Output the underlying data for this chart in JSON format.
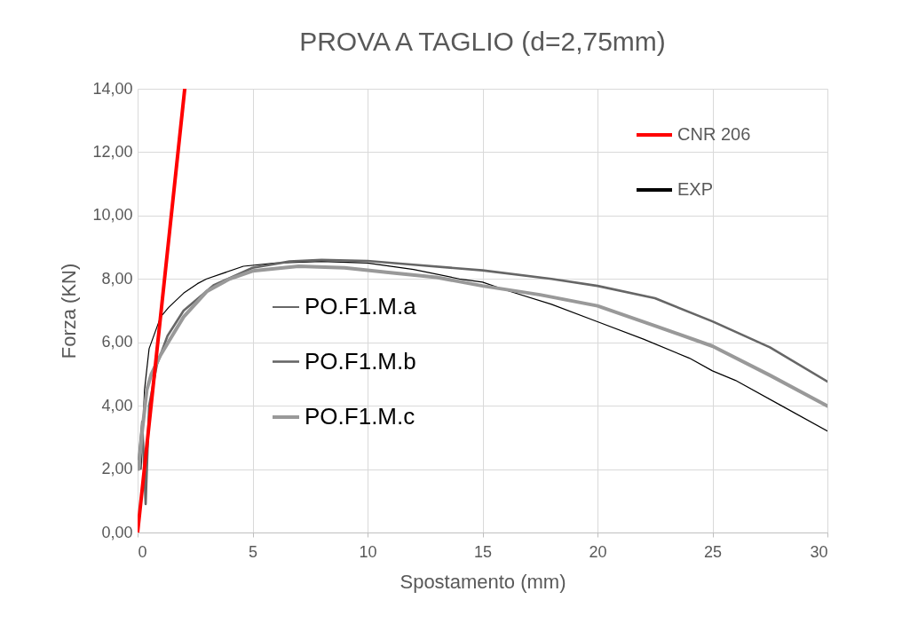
{
  "chart_data": {
    "type": "line",
    "title": "PROVA A TAGLIO (d=2,75mm)",
    "xlabel": "Spostamento (mm)",
    "ylabel": "Forza (KN)",
    "xlim": [
      0,
      30
    ],
    "xticks": [
      0,
      5,
      10,
      15,
      20,
      25,
      30
    ],
    "ylim": [
      0,
      14
    ],
    "yticks": [
      {
        "value": 0,
        "label": "0,00"
      },
      {
        "value": 2,
        "label": "2,00"
      },
      {
        "value": 4,
        "label": "4,00"
      },
      {
        "value": 6,
        "label": "6,00"
      },
      {
        "value": 8,
        "label": "8,00"
      },
      {
        "value": 10,
        "label": "10,00"
      },
      {
        "value": 12,
        "label": "12,00"
      },
      {
        "value": 14,
        "label": "14,00"
      }
    ],
    "grid": true,
    "legend": "top right",
    "line_style": "solid",
    "marker": "none",
    "series": [
      {
        "name": "CNR 206",
        "color": "#ff0000",
        "x": [
          0,
          2.05
        ],
        "values": [
          0,
          14
        ]
      },
      {
        "name": "EXP",
        "color": "#000000"
      },
      {
        "name": "PO.F1.M.a",
        "color": "#000000",
        "x": [
          0.15,
          0.3,
          0.5,
          1,
          1.35,
          2,
          2.6,
          3,
          4.6,
          6,
          8,
          10,
          12,
          14,
          15,
          16,
          18,
          20,
          22,
          24,
          25,
          26,
          28,
          30
        ],
        "values": [
          2.0,
          4.5,
          5.8,
          6.8,
          7.1,
          7.55,
          7.85,
          8.0,
          8.4,
          8.5,
          8.55,
          8.5,
          8.3,
          8.0,
          7.9,
          7.65,
          7.2,
          6.65,
          6.1,
          5.5,
          5.1,
          4.8,
          4.0,
          3.2
        ]
      },
      {
        "name": "PO.F1.M.b",
        "color": "#666666",
        "x": [
          0.05,
          0.2,
          0.35,
          0.5,
          0.84,
          1.3,
          2,
          3.3,
          5,
          6.6,
          8,
          10,
          12,
          15,
          18,
          20,
          22.5,
          25,
          27.5,
          30
        ],
        "values": [
          2.3,
          3.5,
          0.9,
          4.0,
          5.3,
          6.2,
          7.0,
          7.8,
          8.35,
          8.55,
          8.6,
          8.57,
          8.45,
          8.27,
          8.0,
          7.78,
          7.39,
          6.66,
          5.84,
          4.76
        ]
      },
      {
        "name": "PO.F1.M.c",
        "color": "#999999",
        "x": [
          0.05,
          0.2,
          0.4,
          0.6,
          1,
          1.5,
          2,
          3,
          4,
          5,
          7,
          9,
          11,
          13,
          15,
          17.5,
          20,
          22.5,
          25,
          27.5,
          30
        ],
        "values": [
          2.0,
          3.2,
          4.5,
          5.0,
          5.6,
          6.2,
          6.8,
          7.6,
          8.0,
          8.25,
          8.4,
          8.35,
          8.2,
          8.05,
          7.78,
          7.5,
          7.15,
          6.52,
          5.88,
          4.96,
          3.99
        ]
      }
    ]
  }
}
